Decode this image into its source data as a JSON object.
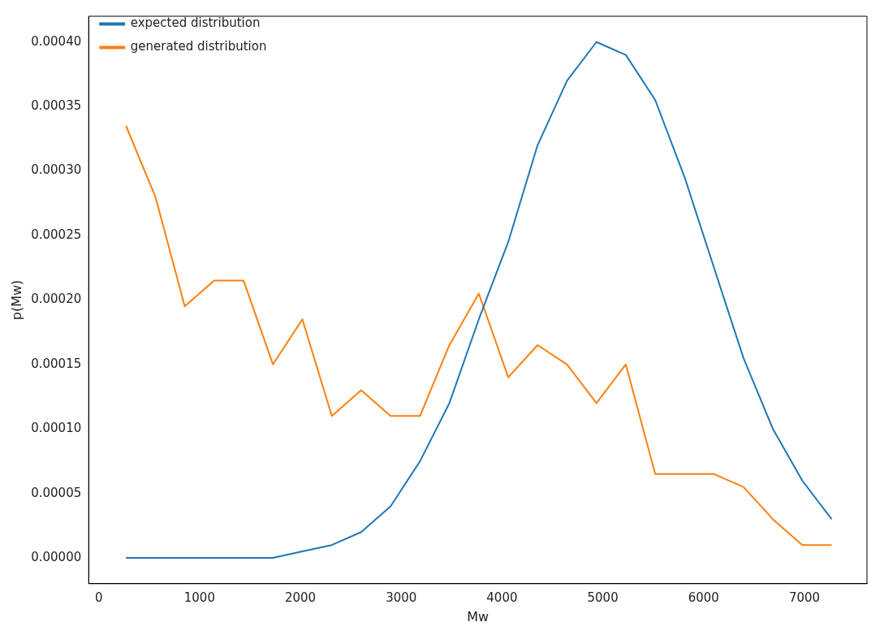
{
  "chart_data": {
    "type": "line",
    "xlabel": "Mw",
    "ylabel": "p(Mw)",
    "x": [
      270,
      562,
      853,
      1145,
      1437,
      1728,
      2020,
      2312,
      2603,
      2895,
      3187,
      3478,
      3770,
      4062,
      4353,
      4645,
      4937,
      5228,
      5520,
      5812,
      6103,
      6395,
      6687,
      6978,
      7270
    ],
    "series": [
      {
        "name": "expected distribution",
        "color": "#1f77b4",
        "values": [
          0,
          0,
          0,
          0,
          0,
          0,
          5e-06,
          1e-05,
          2e-05,
          4e-05,
          7.5e-05,
          0.00012,
          0.000185,
          0.000245,
          0.00032,
          0.00037,
          0.0004,
          0.00039,
          0.000355,
          0.000295,
          0.000225,
          0.000155,
          0.0001,
          6e-05,
          3e-05
        ]
      },
      {
        "name": "generated distribution",
        "color": "#ff7f0e",
        "values": [
          0.000335,
          0.00028,
          0.000195,
          0.000215,
          0.000215,
          0.00015,
          0.000185,
          0.00011,
          0.00013,
          0.00011,
          0.00011,
          0.000165,
          0.000205,
          0.00014,
          0.000165,
          0.00015,
          0.00012,
          0.00015,
          6.5e-05,
          6.5e-05,
          6.5e-05,
          5.5e-05,
          3e-05,
          1e-05,
          1e-05
        ]
      }
    ],
    "xlim": [
      -100,
      7620
    ],
    "ylim": [
      -2e-05,
      0.00042
    ],
    "xticks": [
      0,
      1000,
      2000,
      3000,
      4000,
      5000,
      6000,
      7000
    ],
    "yticks": [
      {
        "value": 0,
        "label": "0.00000"
      },
      {
        "value": 5e-05,
        "label": "0.00005"
      },
      {
        "value": 0.0001,
        "label": "0.00010"
      },
      {
        "value": 0.00015,
        "label": "0.00015"
      },
      {
        "value": 0.0002,
        "label": "0.00020"
      },
      {
        "value": 0.00025,
        "label": "0.00025"
      },
      {
        "value": 0.0003,
        "label": "0.00030"
      },
      {
        "value": 0.00035,
        "label": "0.00035"
      },
      {
        "value": 0.0004,
        "label": "0.00040"
      }
    ],
    "legend": "top left",
    "grid": false,
    "marker": "none",
    "line_style": "solid"
  }
}
